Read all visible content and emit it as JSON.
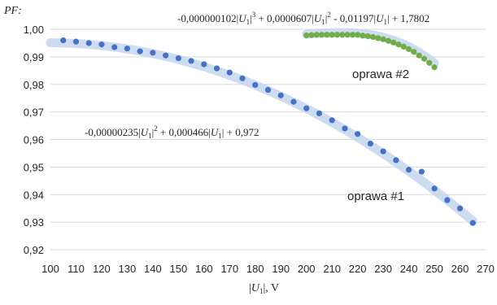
{
  "chart_data": {
    "type": "scatter",
    "title": "",
    "ylabel": "PF:",
    "xlabel": "|U1|, V",
    "xlim": [
      100,
      270
    ],
    "ylim": [
      0.92,
      1.0
    ],
    "x_ticks": [
      100,
      110,
      120,
      130,
      140,
      150,
      160,
      170,
      180,
      190,
      200,
      210,
      220,
      230,
      240,
      250,
      260,
      270
    ],
    "y_tick_labels": [
      "0,92",
      "0,93",
      "0,94",
      "0,95",
      "0,96",
      "0,97",
      "0,98",
      "0,99",
      "1,00"
    ],
    "y_ticks": [
      0.92,
      0.93,
      0.94,
      0.95,
      0.96,
      0.97,
      0.98,
      0.99,
      1.0
    ],
    "grid": "horizontal",
    "series": [
      {
        "name": "oprawa #1",
        "color": "#4472c4",
        "trend_color": "#c5d6ee",
        "trend": {
          "a2": -2.35e-06,
          "a1": 0.000466,
          "a0": 0.972,
          "x_range": [
            100,
            265
          ]
        },
        "points": [
          [
            105,
            0.996
          ],
          [
            110,
            0.9955
          ],
          [
            115,
            0.995
          ],
          [
            120,
            0.9945
          ],
          [
            125,
            0.9935
          ],
          [
            130,
            0.993
          ],
          [
            135,
            0.992
          ],
          [
            140,
            0.9915
          ],
          [
            145,
            0.9905
          ],
          [
            150,
            0.9895
          ],
          [
            155,
            0.9885
          ],
          [
            160,
            0.9873
          ],
          [
            165,
            0.9858
          ],
          [
            170,
            0.9843
          ],
          [
            175,
            0.9822
          ],
          [
            180,
            0.9798
          ],
          [
            185,
            0.978
          ],
          [
            190,
            0.976
          ],
          [
            195,
            0.9737
          ],
          [
            200,
            0.9713
          ],
          [
            205,
            0.9695
          ],
          [
            210,
            0.967
          ],
          [
            215,
            0.964
          ],
          [
            220,
            0.962
          ],
          [
            225,
            0.9585
          ],
          [
            230,
            0.9557
          ],
          [
            235,
            0.9525
          ],
          [
            240,
            0.949
          ],
          [
            245,
            0.9483
          ],
          [
            250,
            0.9422
          ],
          [
            255,
            0.938
          ],
          [
            260,
            0.935
          ],
          [
            265,
            0.9297
          ]
        ]
      },
      {
        "name": "oprawa #2",
        "color": "#70ad47",
        "trend_color": "#c5d6ee",
        "trend": {
          "a3": -1.02e-07,
          "a2": 6.07e-05,
          "a1": -0.01197,
          "a0": 1.7802,
          "x_range": [
            200,
            250
          ]
        },
        "points": [
          [
            200,
            0.9978
          ],
          [
            202,
            0.9979
          ],
          [
            204,
            0.998
          ],
          [
            206,
            0.998
          ],
          [
            208,
            0.998
          ],
          [
            210,
            0.998
          ],
          [
            212,
            0.998
          ],
          [
            214,
            0.998
          ],
          [
            216,
            0.998
          ],
          [
            218,
            0.998
          ],
          [
            220,
            0.998
          ],
          [
            222,
            0.9977
          ],
          [
            224,
            0.9975
          ],
          [
            226,
            0.9972
          ],
          [
            228,
            0.9968
          ],
          [
            230,
            0.9964
          ],
          [
            232,
            0.9958
          ],
          [
            234,
            0.9952
          ],
          [
            236,
            0.9945
          ],
          [
            238,
            0.9937
          ],
          [
            240,
            0.9928
          ],
          [
            242,
            0.9918
          ],
          [
            244,
            0.9905
          ],
          [
            246,
            0.9893
          ],
          [
            248,
            0.9878
          ],
          [
            250,
            0.9862
          ]
        ]
      }
    ],
    "annotations": {
      "series1_label": "oprawa #1",
      "series2_label": "oprawa #2",
      "eq1": {
        "c2": "-0,00000235|",
        "var2": "U",
        "sub2": "1",
        "p2": "|",
        "sup2": "2",
        "c1": " + 0,000466|",
        "var1": "U",
        "sub1": "1",
        "c1end": "|",
        "c0": "  + 0,972"
      },
      "eq2": {
        "c3": "-0,000000102|",
        "var3": "U",
        "sub3": "1",
        "p3": "|",
        "sup3": "3",
        "c2": "  + 0,0000607|",
        "var2": "U",
        "sub2": "1",
        "p2": "|",
        "sup2": "2",
        "c1": "  - 0,01197|",
        "var1": "U",
        "sub1": "1",
        "c1end": "|",
        "c0": "  + 1,7802"
      },
      "xlabel_parts": {
        "pre": "|",
        "var": "U",
        "sub": "1",
        "post": "|, V"
      }
    }
  }
}
